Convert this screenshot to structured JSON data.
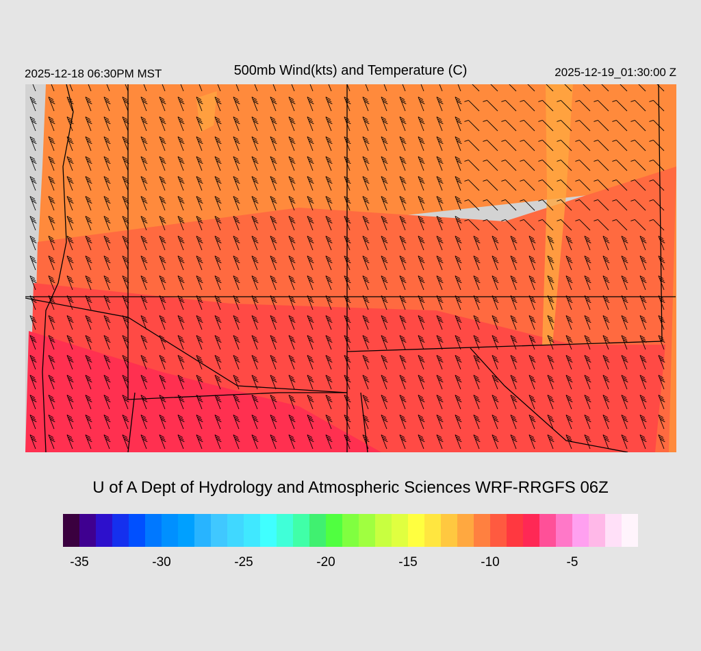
{
  "header": {
    "valid_local": "2025-12-18 06:30PM MST",
    "title": "500mb Wind(kts) and Temperature (C)",
    "valid_utc": "2025-12-19_01:30:00 Z"
  },
  "footer": {
    "credit": "U of A Dept of Hydrology and Atmospheric Sciences WRF-RRGFS 06Z"
  },
  "colorbar": {
    "min": -36,
    "max": -1,
    "step": 1,
    "tick_labels": [
      "-35",
      "-30",
      "-25",
      "-20",
      "-15",
      "-10",
      "-5"
    ],
    "tick_values": [
      -35,
      -30,
      -25,
      -20,
      -15,
      -10,
      -5
    ],
    "colors": [
      "#3a003f",
      "#3f0090",
      "#2d10cc",
      "#1530ee",
      "#0050ff",
      "#0078ff",
      "#0090ff",
      "#00a0ff",
      "#28b4ff",
      "#40c8ff",
      "#40d8ff",
      "#40e8ff",
      "#40ffff",
      "#40ffd8",
      "#40ffa8",
      "#40f070",
      "#50ff40",
      "#80ff40",
      "#a0ff40",
      "#c8ff40",
      "#e0ff40",
      "#ffff40",
      "#ffe640",
      "#ffc840",
      "#ffa840",
      "#ff8040",
      "#ff5a40",
      "#ff3840",
      "#ff2855",
      "#ff5098",
      "#ff78c8",
      "#ffa0f0",
      "#ffb8e8",
      "#ffe0f8",
      "#fff4fc"
    ]
  },
  "map": {
    "missing_color": "#d3d3d3",
    "field_colors": {
      "north": "#ff8a3c",
      "central": "#ff6a40",
      "south": "#ff4a45",
      "southwest": "#ff3050",
      "warm_streaks": "#ffa840"
    }
  }
}
